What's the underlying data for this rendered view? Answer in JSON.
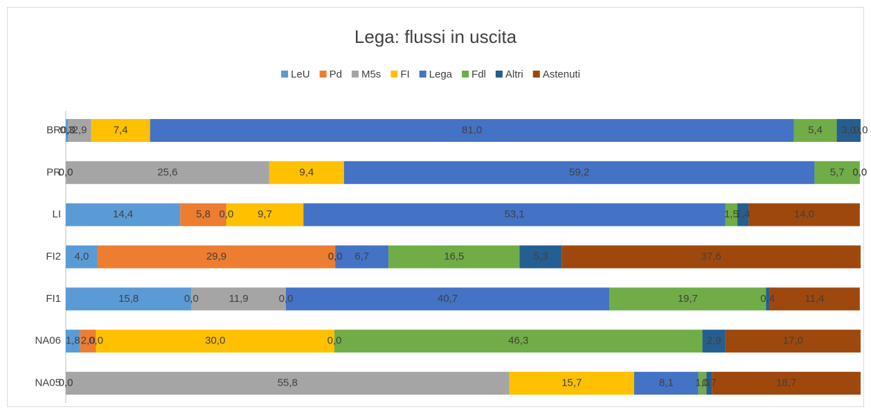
{
  "chart_data": {
    "type": "stacked_barh",
    "title": "Lega: flussi in uscita",
    "categories": [
      "BR",
      "PR",
      "LI",
      "FI2",
      "FI1",
      "NA06",
      "NA05"
    ],
    "xlim": [
      0,
      100
    ],
    "legend": "top",
    "series": [
      {
        "name": "LeU",
        "color": "#5b9bd5",
        "values": [
          0.3,
          0.0,
          14.4,
          4.0,
          15.8,
          1.8,
          0.0
        ],
        "value_labels": [
          "0,3",
          "0,0",
          "14,4",
          "4,0",
          "15,8",
          "1,8",
          "0,0"
        ]
      },
      {
        "name": "Pd",
        "color": "#ed7d31",
        "values": [
          0.0,
          0.0,
          5.8,
          29.9,
          0.0,
          2.0,
          0.0
        ],
        "value_labels": [
          "0,0",
          "0,0",
          "5,8",
          "29,9",
          "0,0",
          "2,0",
          "0,0"
        ]
      },
      {
        "name": "M5s",
        "color": "#a5a5a5",
        "values": [
          2.9,
          25.6,
          0.0,
          0.0,
          11.9,
          0.0,
          55.8
        ],
        "value_labels": [
          "2,9",
          "25,6",
          "0,0",
          "0,0",
          "11,9",
          "0,0",
          "55,8"
        ]
      },
      {
        "name": "FI",
        "color": "#ffc000",
        "values": [
          7.4,
          9.4,
          9.7,
          0.0,
          0.0,
          30.0,
          15.7
        ],
        "value_labels": [
          "7,4",
          "9,4",
          "9,7",
          "0,0",
          "0,0",
          "30,0",
          "15,7"
        ]
      },
      {
        "name": "Lega",
        "color": "#4472c4",
        "values": [
          81.0,
          59.2,
          53.1,
          6.7,
          40.7,
          0.0,
          8.1
        ],
        "value_labels": [
          "81,0",
          "59,2",
          "53,1",
          "6,7",
          "40,7",
          "0,0",
          "8,1"
        ]
      },
      {
        "name": "Fdl",
        "color": "#70ad47",
        "values": [
          5.4,
          5.7,
          1.5,
          16.5,
          19.7,
          46.3,
          1.0
        ],
        "value_labels": [
          "5,4",
          "5,7",
          "1,5",
          "16,5",
          "19,7",
          "46,3",
          "1,0"
        ]
      },
      {
        "name": "Altri",
        "color": "#255e91",
        "values": [
          3.0,
          0.0,
          1.4,
          5.3,
          0.4,
          2.9,
          0.7
        ],
        "value_labels": [
          "3,0",
          "0,0",
          "1,4",
          "5,3",
          "0,4",
          "2,9",
          "0,7"
        ]
      },
      {
        "name": "Astenuti",
        "color": "#9e480e",
        "values": [
          0.0,
          0.0,
          14.0,
          37.6,
          11.4,
          17.0,
          18.7
        ],
        "value_labels": [
          "0,0",
          "0,0",
          "14,0",
          "37,6",
          "11,4",
          "17,0",
          "18,7"
        ]
      }
    ]
  }
}
